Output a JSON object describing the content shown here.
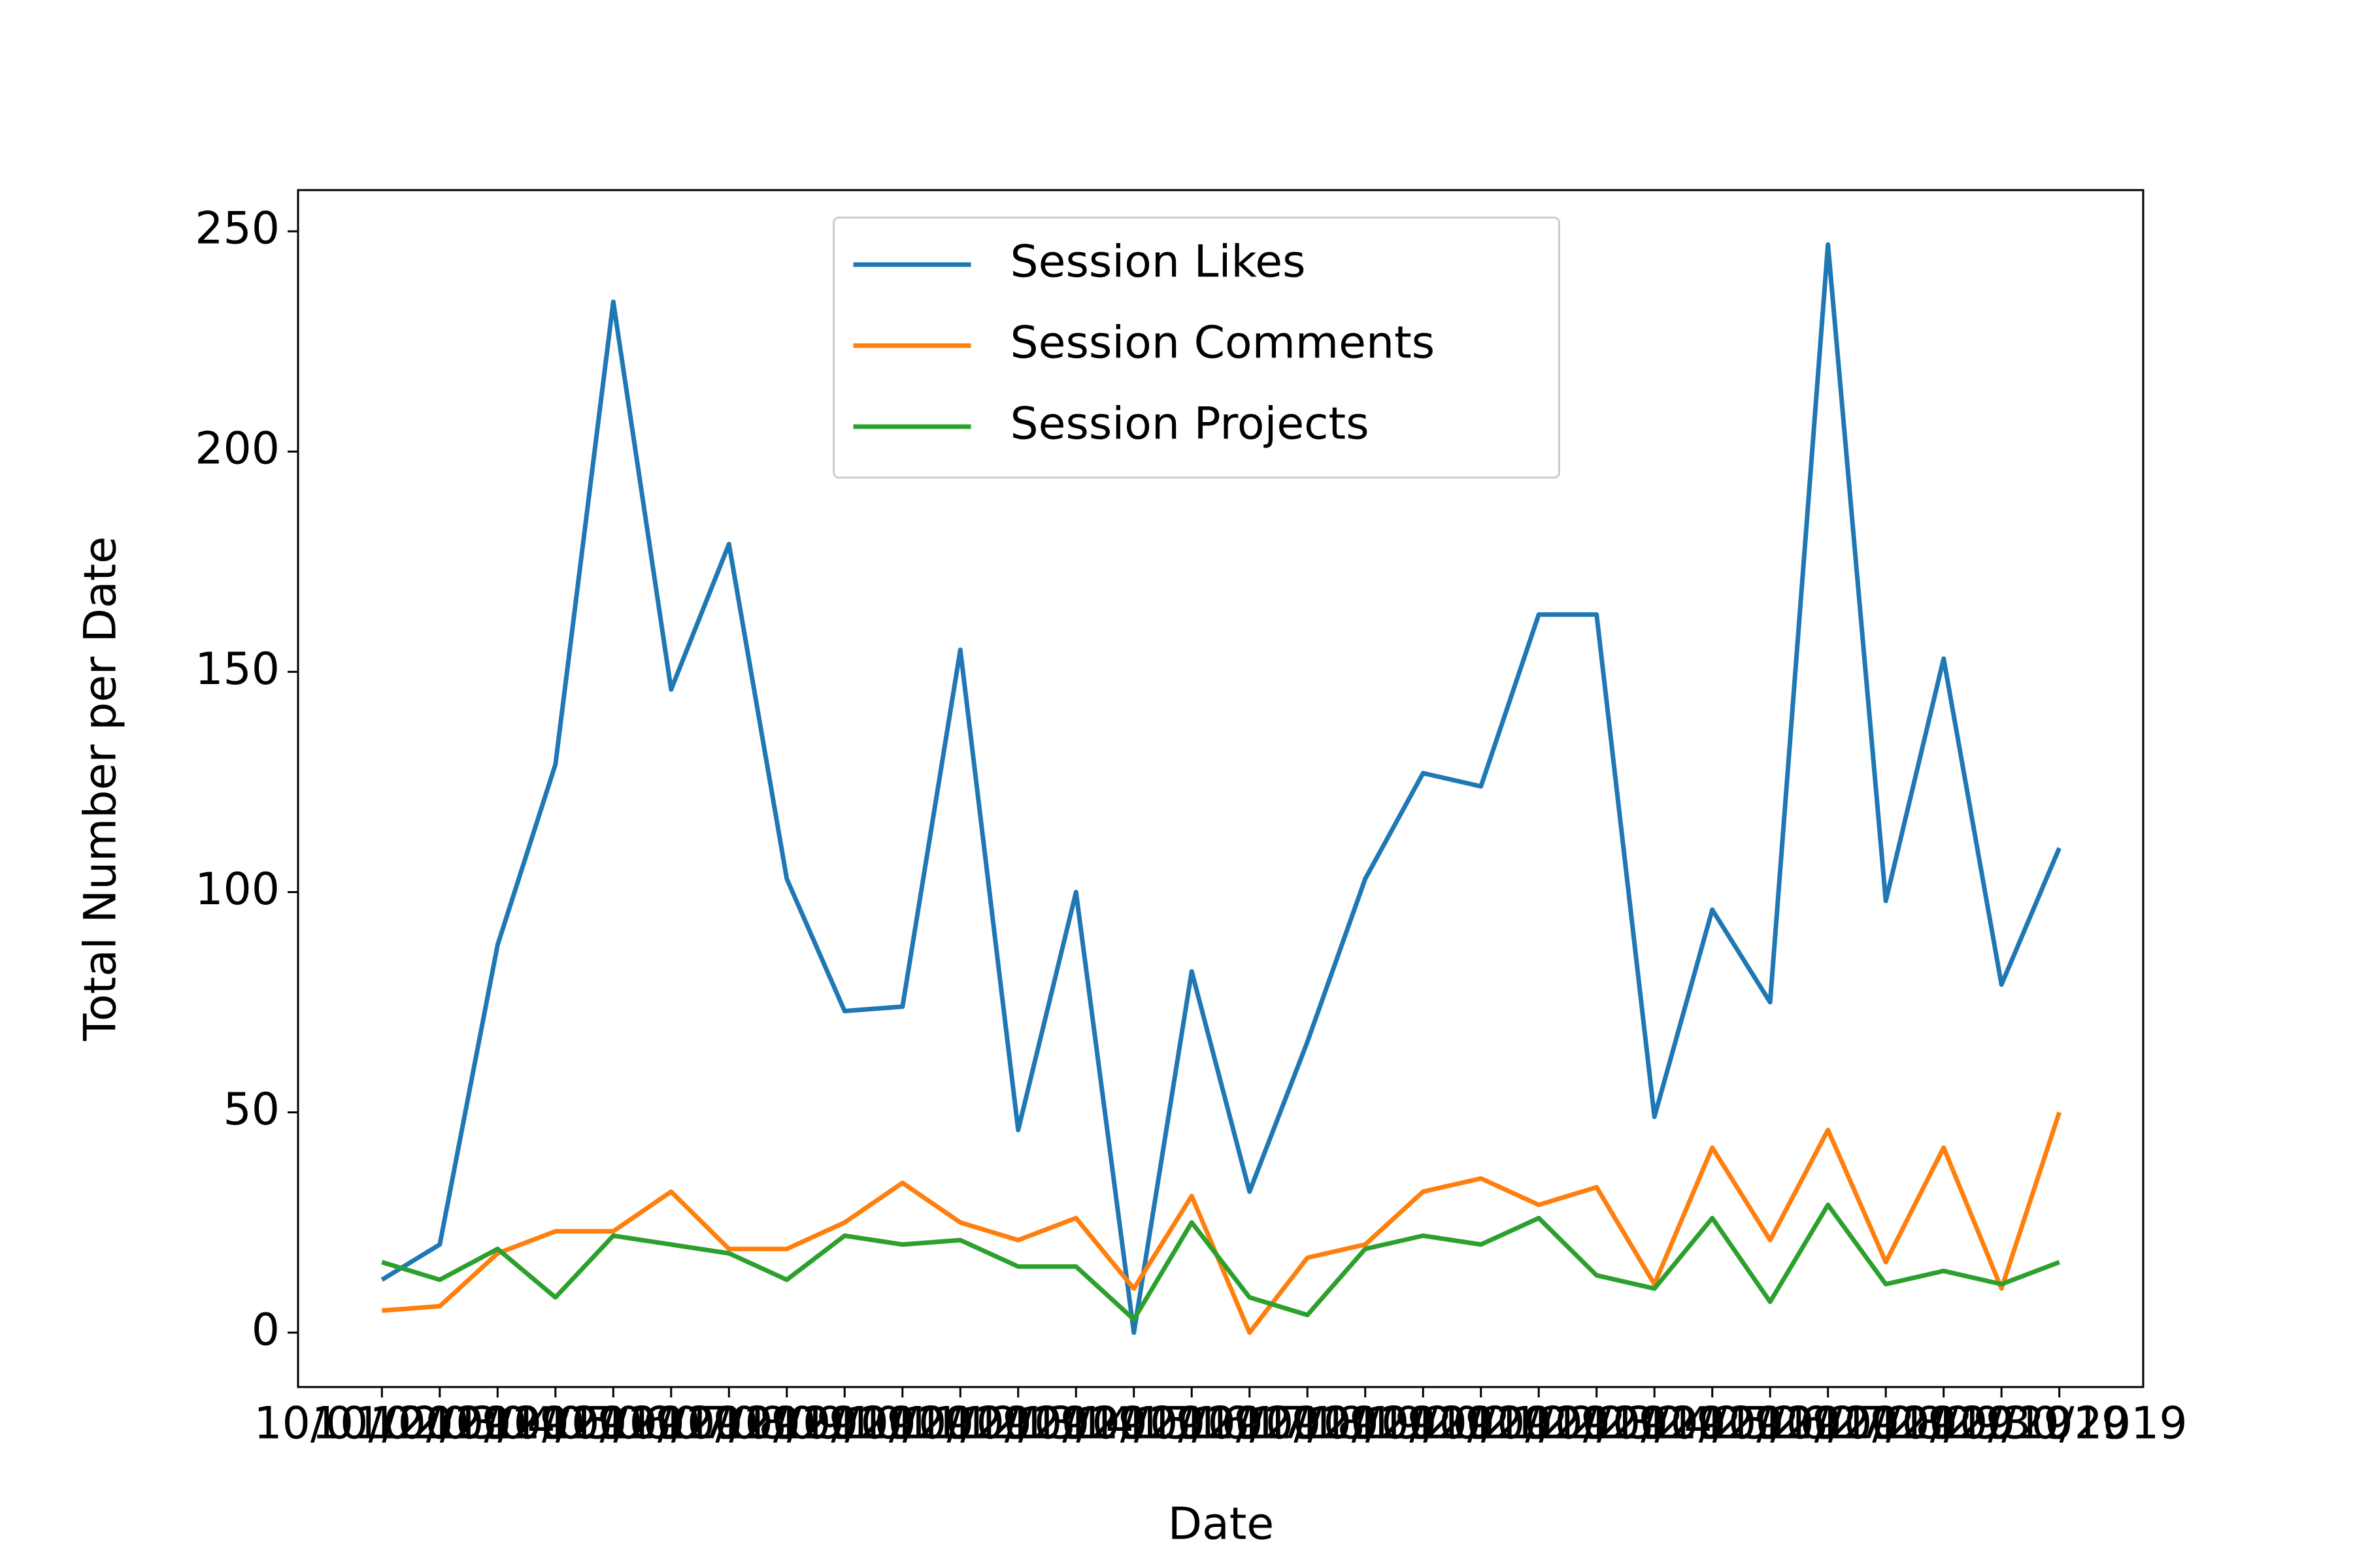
{
  "chart_data": {
    "type": "line",
    "x_label": "Date",
    "y_label": "Total Number per Date",
    "categories": [
      "10/01/2019",
      "10/02/2019",
      "10/03/2019",
      "10/04/2019",
      "10/05/2019",
      "10/06/2019",
      "10/07/2019",
      "10/08/2019",
      "10/09/2019",
      "10/10/2019",
      "10/11/2019",
      "10/12/2019",
      "10/13/2019",
      "10/14/2019",
      "10/15/2019",
      "10/16/2019",
      "10/17/2019",
      "10/18/2019",
      "10/19/2019",
      "10/20/2019",
      "10/21/2019",
      "10/22/2019",
      "10/23/2019",
      "10/24/2019",
      "10/25/2019",
      "10/26/2019",
      "10/27/2019",
      "10/28/2019",
      "10/29/2019",
      "10/30/2019"
    ],
    "series": [
      {
        "name": "Session Likes",
        "color": "#1f77b4",
        "values": [
          12,
          20,
          88,
          129,
          234,
          146,
          179,
          103,
          73,
          74,
          155,
          46,
          100,
          0,
          82,
          32,
          66,
          103,
          127,
          124,
          163,
          163,
          49,
          96,
          75,
          247,
          98,
          153,
          79,
          110
        ]
      },
      {
        "name": "Session Comments",
        "color": "#ff7f0e",
        "values": [
          5,
          6,
          18,
          23,
          23,
          32,
          19,
          19,
          25,
          34,
          25,
          21,
          26,
          10,
          31,
          0,
          17,
          20,
          32,
          35,
          29,
          33,
          11,
          42,
          21,
          46,
          16,
          42,
          10,
          50
        ]
      },
      {
        "name": "Session Projects",
        "color": "#2ca02c",
        "values": [
          16,
          12,
          19,
          8,
          22,
          20,
          18,
          12,
          22,
          20,
          21,
          15,
          15,
          3,
          25,
          8,
          4,
          19,
          22,
          20,
          26,
          13,
          10,
          26,
          7,
          29,
          11,
          14,
          11,
          16
        ]
      }
    ],
    "ylim": [
      -12.35,
      259.35
    ],
    "yticks": [
      0,
      50,
      100,
      150,
      200,
      250
    ],
    "legend": "upper center",
    "grid": false
  }
}
